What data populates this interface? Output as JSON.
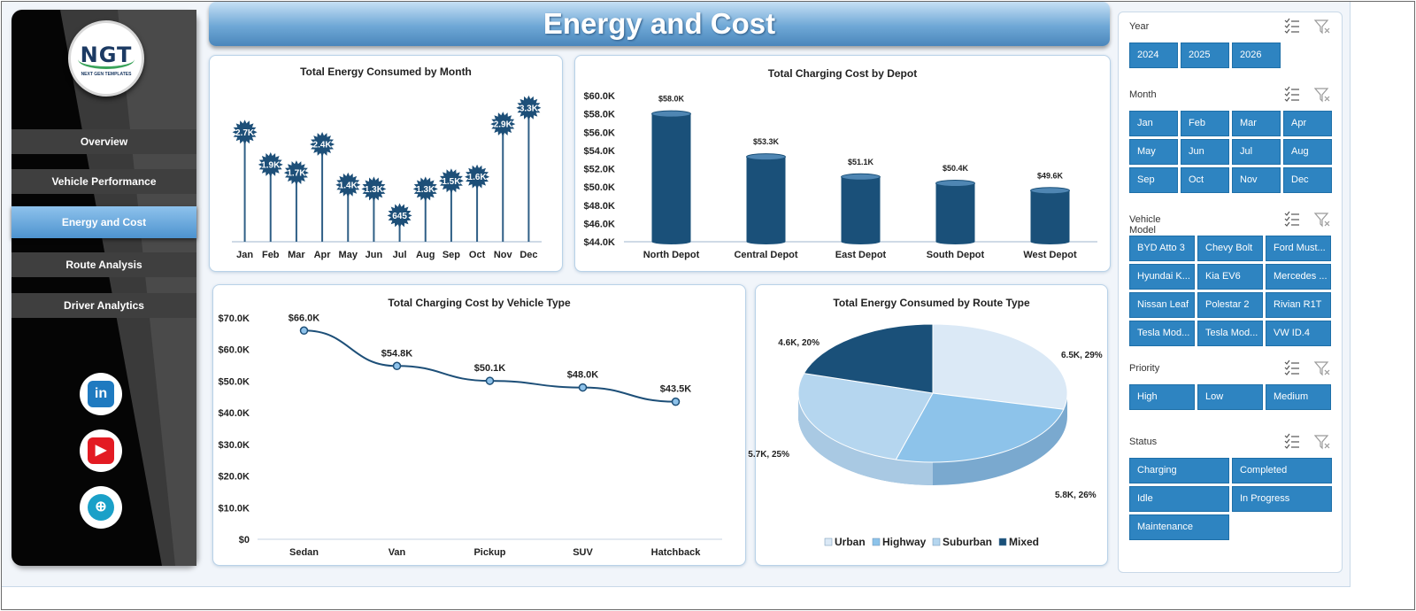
{
  "header": {
    "title": "Energy and Cost"
  },
  "logo": {
    "text": "NGT",
    "subtext": "NEXT GEN TEMPLATES"
  },
  "nav": [
    {
      "label": "Overview",
      "active": false
    },
    {
      "label": "Vehicle Performance",
      "active": false
    },
    {
      "label": "Energy and Cost",
      "active": true
    },
    {
      "label": "Route Analysis",
      "active": false
    },
    {
      "label": "Driver Analytics",
      "active": false
    }
  ],
  "social": [
    {
      "icon": "linkedin-icon",
      "glyph": "in",
      "color": "#1f7ac0"
    },
    {
      "icon": "youtube-icon",
      "glyph": "▶",
      "color": "#e31b23"
    },
    {
      "icon": "globe-icon",
      "glyph": "⊕",
      "color": "#1aa0c8"
    }
  ],
  "colors": {
    "accent": "#2e84c1",
    "dark_series": "#1a5079"
  },
  "chart_data": [
    {
      "type": "bar",
      "title": "Total Energy Consumed by Month",
      "categories": [
        "Jan",
        "Feb",
        "Mar",
        "Apr",
        "May",
        "Jun",
        "Jul",
        "Aug",
        "Sep",
        "Oct",
        "Nov",
        "Dec"
      ],
      "values": [
        2700,
        1900,
        1700,
        2400,
        1400,
        1300,
        645,
        1300,
        1500,
        1600,
        2900,
        3300
      ],
      "data_labels": [
        "2.7K",
        "1.9K",
        "1.7K",
        "2.4K",
        "1.4K",
        "1.3K",
        "645",
        "1.3K",
        "1.5K",
        "1.6K",
        "2.9K",
        "3.3K"
      ],
      "ylim": [
        0,
        3600
      ]
    },
    {
      "type": "bar",
      "title": "Total Charging Cost by Depot",
      "categories": [
        "North Depot",
        "Central Depot",
        "East Depot",
        "South Depot",
        "West Depot"
      ],
      "values": [
        58000,
        53300,
        51100,
        50400,
        49600
      ],
      "data_labels": [
        "$58.0K",
        "$53.3K",
        "$51.1K",
        "$50.4K",
        "$49.6K"
      ],
      "ylim": [
        44000,
        60000
      ],
      "ticks": [
        "$44.0K",
        "$46.0K",
        "$48.0K",
        "$50.0K",
        "$52.0K",
        "$54.0K",
        "$56.0K",
        "$58.0K",
        "$60.0K"
      ]
    },
    {
      "type": "line",
      "title": "Total Charging Cost by Vehicle Type",
      "categories": [
        "Sedan",
        "Van",
        "Pickup",
        "SUV",
        "Hatchback"
      ],
      "values": [
        66000,
        54800,
        50100,
        48000,
        43500
      ],
      "data_labels": [
        "$66.0K",
        "$54.8K",
        "$50.1K",
        "$48.0K",
        "$43.5K"
      ],
      "ylim": [
        0,
        70000
      ],
      "ticks": [
        "$0",
        "$10.0K",
        "$20.0K",
        "$30.0K",
        "$40.0K",
        "$50.0K",
        "$60.0K",
        "$70.0K"
      ]
    },
    {
      "type": "pie",
      "title": "Total Energy Consumed by Route Type",
      "slices": [
        {
          "name": "Urban",
          "value": 6500,
          "percent": 29,
          "label": "6.5K, 29%",
          "color": "#dbe9f6"
        },
        {
          "name": "Highway",
          "value": 5800,
          "percent": 26,
          "label": "5.8K, 26%",
          "color": "#8dc3ea"
        },
        {
          "name": "Suburban",
          "value": 5700,
          "percent": 25,
          "label": "5.7K, 25%",
          "color": "#b5d6ef"
        },
        {
          "name": "Mixed",
          "value": 4600,
          "percent": 20,
          "label": "4.6K, 20%",
          "color": "#1a5079"
        }
      ],
      "legend": "bottom"
    }
  ],
  "slicers": [
    {
      "title": "Year",
      "cols": 3,
      "width": 55,
      "items": [
        "2024",
        "2025",
        "2026"
      ]
    },
    {
      "title": "Month",
      "cols": 4,
      "width": 55,
      "items": [
        "Jan",
        "Feb",
        "Mar",
        "Apr",
        "May",
        "Jun",
        "Jul",
        "Aug",
        "Sep",
        "Oct",
        "Nov",
        "Dec"
      ]
    },
    {
      "title": "Vehicle Model",
      "cols": 3,
      "width": 74,
      "items": [
        "BYD Atto 3",
        "Chevy Bolt",
        "Ford Must...",
        "Hyundai K...",
        "Kia EV6",
        "Mercedes ...",
        "Nissan Leaf",
        "Polestar 2",
        "Rivian R1T",
        "Tesla Mod...",
        "Tesla Mod...",
        "VW ID.4"
      ]
    },
    {
      "title": "Priority",
      "cols": 3,
      "width": 74,
      "items": [
        "High",
        "Low",
        "Medium"
      ]
    },
    {
      "title": "Status",
      "cols": 2,
      "width": 113,
      "items": [
        "Charging",
        "Completed",
        "Idle",
        "In Progress",
        "Maintenance"
      ]
    }
  ]
}
